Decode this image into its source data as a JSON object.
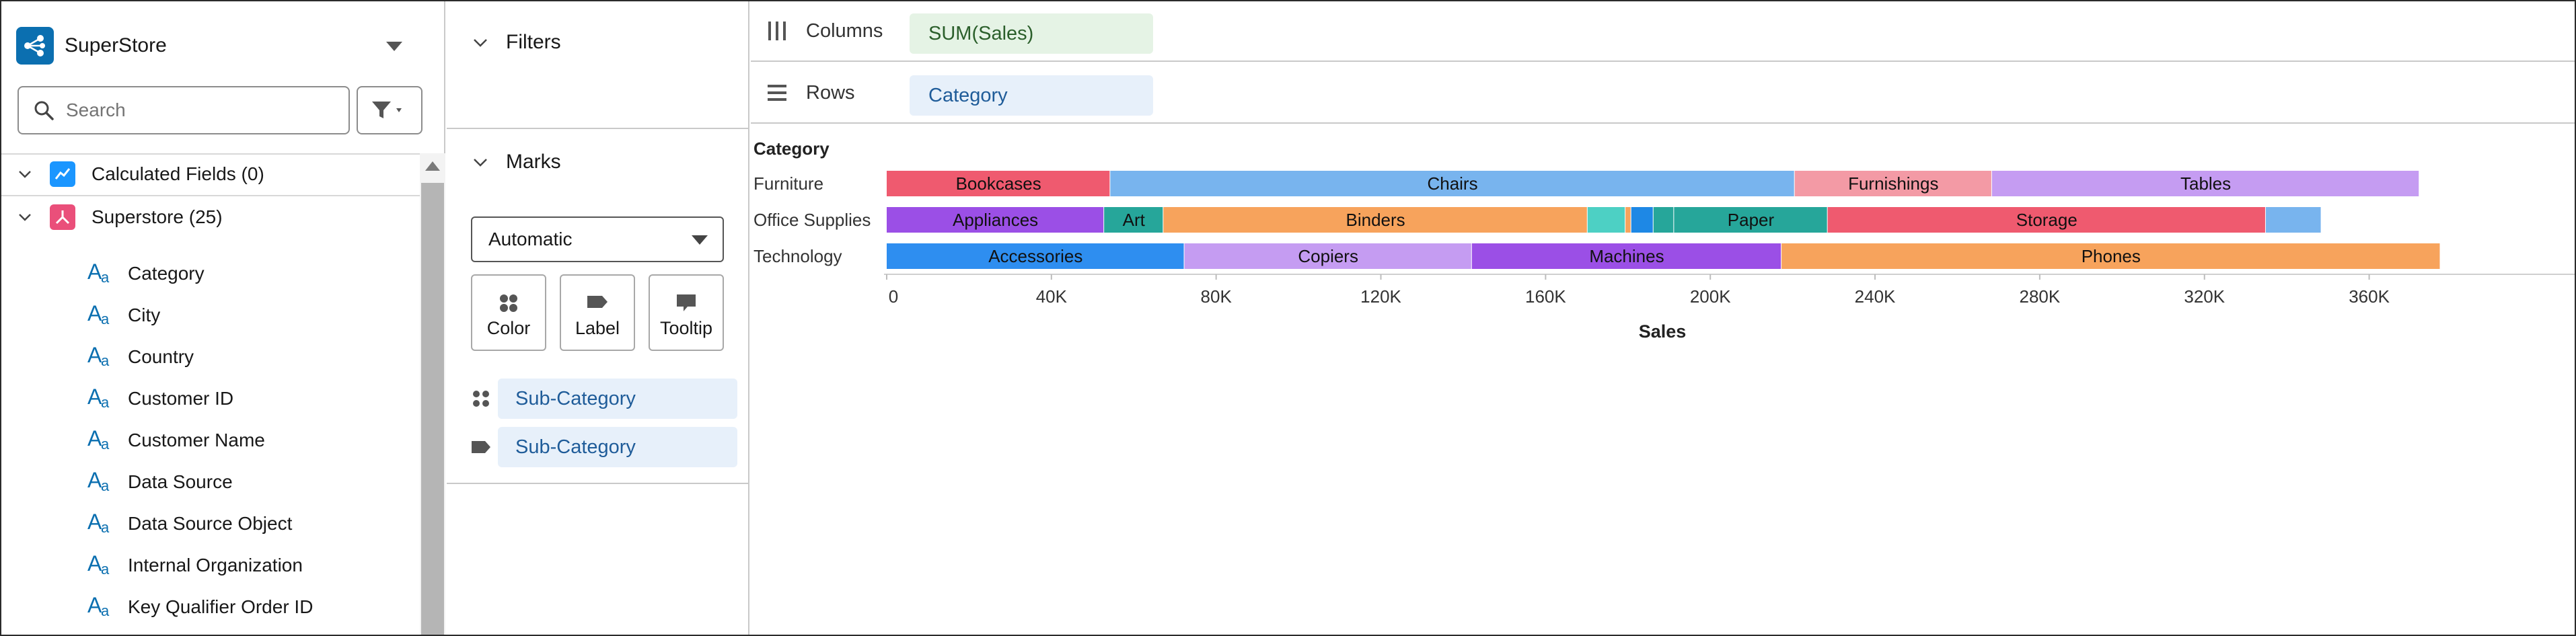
{
  "datasource": {
    "name": "SuperStore",
    "search_placeholder": "Search",
    "groups": [
      {
        "label": "Calculated Fields (0)",
        "color": "#1b96ff"
      },
      {
        "label": "Superstore (25)",
        "color": "#ea4f7a"
      }
    ],
    "fields": [
      "Category",
      "City",
      "Country",
      "Customer ID",
      "Customer Name",
      "Data Source",
      "Data Source Object",
      "Internal Organization",
      "Key Qualifier Order ID"
    ],
    "field_type_glyph_big": "A",
    "field_type_glyph_small": "a"
  },
  "filters": {
    "title": "Filters"
  },
  "marks": {
    "title": "Marks",
    "type_selected": "Automatic",
    "buttons": [
      "Color",
      "Label",
      "Tooltip"
    ],
    "pills": [
      "Sub-Category",
      "Sub-Category"
    ]
  },
  "shelves": {
    "columns": {
      "title": "Columns",
      "pill": "SUM(Sales)"
    },
    "rows": {
      "title": "Rows",
      "pill": "Category"
    }
  },
  "chart_data": {
    "type": "bar",
    "stacked": true,
    "orientation": "horizontal",
    "row_header": "Category",
    "xlabel": "Sales",
    "xlim": [
      0,
      380000
    ],
    "x_ticks": [
      "0",
      "40K",
      "80K",
      "120K",
      "160K",
      "200K",
      "240K",
      "280K",
      "320K",
      "360K"
    ],
    "x_tick_values": [
      0,
      40000,
      80000,
      120000,
      160000,
      200000,
      240000,
      280000,
      320000,
      360000
    ],
    "categories": [
      "Furniture",
      "Office Supplies",
      "Technology"
    ],
    "rows": [
      {
        "category": "Furniture",
        "segments": [
          {
            "label": "Bookcases",
            "value": 54300,
            "color": "#ef5a6f"
          },
          {
            "label": "Chairs",
            "value": 166200,
            "color": "#78b4ee"
          },
          {
            "label": "Furnishings",
            "value": 47900,
            "color": "#f39aa5"
          },
          {
            "label": "Tables",
            "value": 103800,
            "color": "#c59cf2"
          }
        ]
      },
      {
        "category": "Office Supplies",
        "segments": [
          {
            "label": "Appliances",
            "value": 52800,
            "color": "#9b4fe6"
          },
          {
            "label": "Art",
            "value": 14400,
            "color": "#26a69a"
          },
          {
            "label": "Binders",
            "value": 103000,
            "color": "#f7a35c"
          },
          {
            "label": "",
            "value": 9200,
            "color": "#4dd0c4"
          },
          {
            "label": "",
            "value": 1400,
            "color": "#f7a35c"
          },
          {
            "label": "",
            "value": 5400,
            "color": "#1e88e5"
          },
          {
            "label": "",
            "value": 5000,
            "color": "#26a69a"
          },
          {
            "label": "Paper",
            "value": 37300,
            "color": "#26a69a"
          },
          {
            "label": "Storage",
            "value": 106400,
            "color": "#ef5a6f"
          },
          {
            "label": "",
            "value": 13500,
            "color": "#78b4ee"
          }
        ]
      },
      {
        "category": "Technology",
        "segments": [
          {
            "label": "Accessories",
            "value": 72300,
            "color": "#2e8ef0"
          },
          {
            "label": "Copiers",
            "value": 69800,
            "color": "#c59cf2"
          },
          {
            "label": "Machines",
            "value": 75200,
            "color": "#9b4fe6"
          },
          {
            "label": "Phones",
            "value": 160000,
            "color": "#f7a35c"
          }
        ]
      }
    ]
  }
}
